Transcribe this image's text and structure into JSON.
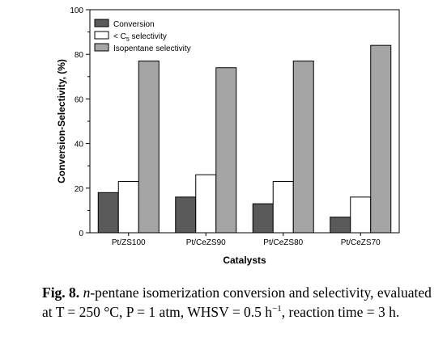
{
  "chart_data": {
    "type": "bar",
    "categories": [
      "Pt/ZS100",
      "Pt/CeZS90",
      "Pt/CeZS80",
      "Pt/CeZS70"
    ],
    "series": [
      {
        "name": "Conversion",
        "color": "#5a5a5a",
        "values": [
          18,
          16,
          13,
          7
        ]
      },
      {
        "name": "< C5 selectivity",
        "name_parts": {
          "before": "< C",
          "sub": "5",
          "after": " selectivity"
        },
        "color": "#ffffff",
        "values": [
          23,
          26,
          23,
          16
        ]
      },
      {
        "name": "Isopentane selectivity",
        "color": "#a5a5a5",
        "values": [
          77,
          74,
          77,
          84
        ]
      }
    ],
    "xlabel": "Catalysts",
    "ylabel": "Conversion-Selectivity, (%)",
    "ylim": [
      0,
      100
    ],
    "yticks": [
      0,
      20,
      40,
      60,
      80,
      100
    ],
    "grid": false,
    "legend_position": "top-left"
  },
  "caption": {
    "label": "Fig. 8.",
    "italic": "n",
    "line1_rest": "-pentane isomerization conversion and selectivity, evaluated",
    "line2_a": "at T = 250 °C, P = 1 atm, WHSV = 0.5 h",
    "line2_sup": "−1",
    "line2_b": ", reaction time = 3 h."
  }
}
